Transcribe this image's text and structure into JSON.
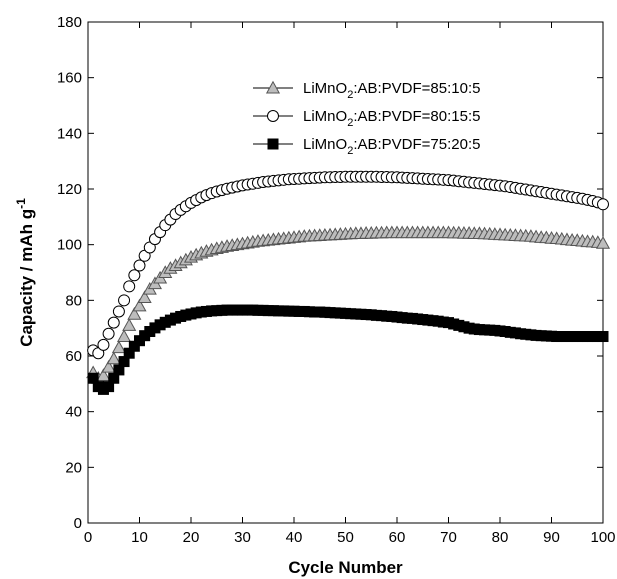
{
  "chart_data": {
    "type": "scatter",
    "title": "",
    "xlabel": "Cycle Number",
    "ylabel": "Capacity / mAh g-1",
    "xlim": [
      0,
      100
    ],
    "ylim": [
      0,
      180
    ],
    "xticks": [
      0,
      10,
      20,
      30,
      40,
      50,
      60,
      70,
      80,
      90,
      100
    ],
    "yticks": [
      0,
      20,
      40,
      60,
      80,
      100,
      120,
      140,
      160,
      180
    ],
    "grid": false,
    "legend_position": "top-right",
    "legend": [
      {
        "label_main": "LiMnO",
        "label_sub": "2",
        "label_rest": ":AB:PVDF=85:10:5",
        "marker": "triangle"
      },
      {
        "label_main": "LiMnO",
        "label_sub": "2",
        "label_rest": ":AB:PVDF=80:15:5",
        "marker": "circle"
      },
      {
        "label_main": "LiMnO",
        "label_sub": "2",
        "label_rest": ":AB:PVDF=75:20:5",
        "marker": "square"
      }
    ],
    "series": [
      {
        "name": "LiMnO2:AB:PVDF=85:10:5",
        "marker": "triangle",
        "fill": "#bdbdbd",
        "stroke": "#555555",
        "x": [
          1,
          2,
          3,
          4,
          5,
          6,
          7,
          8,
          9,
          10,
          11,
          12,
          13,
          14,
          15,
          16,
          17,
          18,
          19,
          20,
          21,
          22,
          23,
          24,
          25,
          26,
          27,
          28,
          29,
          30,
          31,
          32,
          33,
          34,
          35,
          36,
          37,
          38,
          39,
          40,
          41,
          42,
          43,
          44,
          45,
          46,
          47,
          48,
          49,
          50,
          51,
          52,
          53,
          54,
          55,
          56,
          57,
          58,
          59,
          60,
          61,
          62,
          63,
          64,
          65,
          66,
          67,
          68,
          69,
          70,
          71,
          72,
          73,
          74,
          75,
          76,
          77,
          78,
          79,
          80,
          81,
          82,
          83,
          84,
          85,
          86,
          87,
          88,
          89,
          90,
          91,
          92,
          93,
          94,
          95,
          96,
          97,
          98,
          99,
          100
        ],
        "y": [
          54,
          52,
          53,
          56,
          59,
          63,
          67,
          71,
          75,
          78,
          81,
          84,
          86,
          88,
          90,
          91.5,
          92.5,
          93.5,
          94.5,
          95.5,
          96.3,
          97,
          97.6,
          98.1,
          98.6,
          99,
          99.4,
          99.7,
          100,
          100.3,
          100.6,
          100.9,
          101.2,
          101.4,
          101.6,
          101.8,
          102,
          102.2,
          102.4,
          102.6,
          102.8,
          103,
          103.1,
          103.2,
          103.3,
          103.4,
          103.5,
          103.6,
          103.7,
          103.8,
          103.9,
          104,
          104,
          104.1,
          104.1,
          104.2,
          104.2,
          104.3,
          104.3,
          104.3,
          104.3,
          104.3,
          104.3,
          104.3,
          104.3,
          104.3,
          104.3,
          104.3,
          104.3,
          104.3,
          104.2,
          104.2,
          104.1,
          104.1,
          104,
          104,
          103.9,
          103.8,
          103.7,
          103.6,
          103.5,
          103.4,
          103.3,
          103.2,
          103.1,
          103,
          102.8,
          102.6,
          102.5,
          102.3,
          102.2,
          102,
          101.8,
          101.6,
          101.5,
          101.3,
          101.1,
          101,
          100.8,
          100.5
        ]
      },
      {
        "name": "LiMnO2:AB:PVDF=80:15:5",
        "marker": "circle",
        "fill": "#ffffff",
        "stroke": "#000000",
        "x": [
          1,
          2,
          3,
          4,
          5,
          6,
          7,
          8,
          9,
          10,
          11,
          12,
          13,
          14,
          15,
          16,
          17,
          18,
          19,
          20,
          21,
          22,
          23,
          24,
          25,
          26,
          27,
          28,
          29,
          30,
          31,
          32,
          33,
          34,
          35,
          36,
          37,
          38,
          39,
          40,
          41,
          42,
          43,
          44,
          45,
          46,
          47,
          48,
          49,
          50,
          51,
          52,
          53,
          54,
          55,
          56,
          57,
          58,
          59,
          60,
          61,
          62,
          63,
          64,
          65,
          66,
          67,
          68,
          69,
          70,
          71,
          72,
          73,
          74,
          75,
          76,
          77,
          78,
          79,
          80,
          81,
          82,
          83,
          84,
          85,
          86,
          87,
          88,
          89,
          90,
          91,
          92,
          93,
          94,
          95,
          96,
          97,
          98,
          99,
          100
        ],
        "y": [
          62,
          61,
          64,
          68,
          72,
          76,
          80,
          85,
          89,
          92.5,
          96,
          99,
          102,
          104.5,
          107,
          109,
          111,
          112.5,
          113.8,
          115,
          116,
          117,
          117.8,
          118.5,
          119.1,
          119.6,
          120.1,
          120.5,
          120.9,
          121.3,
          121.6,
          121.9,
          122.2,
          122.5,
          122.7,
          122.9,
          123.1,
          123.3,
          123.5,
          123.6,
          123.7,
          123.8,
          123.9,
          124,
          124.1,
          124.2,
          124.2,
          124.3,
          124.3,
          124.4,
          124.4,
          124.4,
          124.4,
          124.4,
          124.4,
          124.4,
          124.3,
          124.3,
          124.2,
          124.2,
          124.1,
          124,
          123.9,
          123.8,
          123.7,
          123.6,
          123.5,
          123.4,
          123.3,
          123.2,
          123,
          122.8,
          122.6,
          122.4,
          122.2,
          122,
          121.8,
          121.6,
          121.4,
          121.2,
          121,
          120.7,
          120.4,
          120.1,
          119.8,
          119.5,
          119.2,
          118.9,
          118.6,
          118.3,
          118,
          117.7,
          117.4,
          117.1,
          116.8,
          116.5,
          116.1,
          115.7,
          115.2,
          114.5
        ]
      },
      {
        "name": "LiMnO2:AB:PVDF=75:20:5",
        "marker": "square",
        "fill": "#000000",
        "stroke": "#000000",
        "x": [
          1,
          2,
          3,
          4,
          5,
          6,
          7,
          8,
          9,
          10,
          11,
          12,
          13,
          14,
          15,
          16,
          17,
          18,
          19,
          20,
          21,
          22,
          23,
          24,
          25,
          26,
          27,
          28,
          29,
          30,
          31,
          32,
          33,
          34,
          35,
          36,
          37,
          38,
          39,
          40,
          41,
          42,
          43,
          44,
          45,
          46,
          47,
          48,
          49,
          50,
          51,
          52,
          53,
          54,
          55,
          56,
          57,
          58,
          59,
          60,
          61,
          62,
          63,
          64,
          65,
          66,
          67,
          68,
          69,
          70,
          71,
          72,
          73,
          74,
          75,
          76,
          77,
          78,
          79,
          80,
          81,
          82,
          83,
          84,
          85,
          86,
          87,
          88,
          89,
          90,
          91,
          92,
          93,
          94,
          95,
          96,
          97,
          98,
          99,
          100
        ],
        "y": [
          52,
          49,
          48,
          49,
          52,
          55,
          58,
          61,
          63.5,
          65.5,
          67.3,
          68.8,
          70.1,
          71.2,
          72.1,
          72.9,
          73.6,
          74.2,
          74.7,
          75.1,
          75.5,
          75.8,
          76,
          76.2,
          76.3,
          76.4,
          76.5,
          76.5,
          76.5,
          76.5,
          76.5,
          76.5,
          76.4,
          76.4,
          76.3,
          76.3,
          76.2,
          76.2,
          76.1,
          76.1,
          76,
          76,
          75.9,
          75.8,
          75.8,
          75.7,
          75.6,
          75.5,
          75.4,
          75.3,
          75.2,
          75.1,
          75,
          74.9,
          74.8,
          74.6,
          74.5,
          74.3,
          74.2,
          74,
          73.8,
          73.6,
          73.5,
          73.3,
          73.1,
          72.9,
          72.7,
          72.5,
          72.2,
          72,
          71.5,
          71,
          70.5,
          70,
          69.7,
          69.5,
          69.4,
          69.3,
          69.2,
          69,
          68.8,
          68.5,
          68.3,
          68,
          67.8,
          67.6,
          67.4,
          67.3,
          67.2,
          67.1,
          67,
          67,
          67,
          67,
          67,
          67,
          67,
          67,
          67,
          67
        ]
      }
    ]
  }
}
